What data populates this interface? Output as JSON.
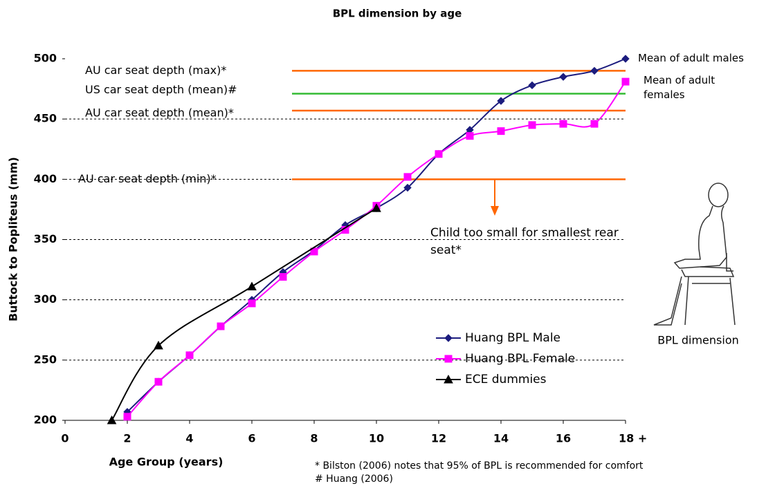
{
  "chart_data": {
    "type": "line",
    "title": "BPL dimension by age",
    "x_label": "Age Group (years)",
    "y_label": "Buttock to Popliteus (mm)",
    "xlim": [
      0,
      18
    ],
    "ylim": [
      200,
      500
    ],
    "xticks": [
      0,
      2,
      4,
      6,
      8,
      10,
      12,
      14,
      16,
      {
        "value": 18,
        "label": "18 +"
      }
    ],
    "yticks": [
      200,
      250,
      300,
      350,
      400,
      450,
      500
    ],
    "grid_lines": [
      250,
      300,
      350,
      400,
      450
    ],
    "legend": "lower right",
    "series": [
      {
        "name": "Huang BPL Male",
        "color": "#1c1c7e",
        "marker": "diamond",
        "x": [
          2,
          3,
          4,
          5,
          6,
          7,
          8,
          9,
          10,
          11,
          12,
          13,
          14,
          15,
          16,
          17,
          18
        ],
        "values": [
          207,
          232,
          254,
          278,
          300,
          323,
          341,
          362,
          376,
          393,
          421,
          441,
          465,
          478,
          485,
          490,
          500
        ]
      },
      {
        "name": "Huang BPL Female",
        "color": "#ff00ff",
        "marker": "square",
        "x": [
          2,
          3,
          4,
          5,
          6,
          7,
          8,
          9,
          10,
          11,
          12,
          13,
          14,
          15,
          16,
          17,
          18
        ],
        "values": [
          203,
          232,
          254,
          278,
          297,
          319,
          340,
          358,
          378,
          402,
          421,
          436,
          440,
          445,
          446,
          446,
          481
        ]
      },
      {
        "name": "ECE dummies",
        "color": "#000000",
        "marker": "triangle",
        "x": [
          1.5,
          3,
          6,
          10
        ],
        "values": [
          200,
          262,
          311,
          376
        ]
      }
    ],
    "reference_lines": [
      {
        "label": "AU car seat depth (max)*",
        "value": 490,
        "color": "#ff6600"
      },
      {
        "label": "US car seat depth (mean)#",
        "value": 471,
        "color": "#33bb33"
      },
      {
        "label": "AU car seat depth (mean)*",
        "value": 457,
        "color": "#ff6600"
      },
      {
        "label": "AU car seat depth (min)*",
        "value": 400,
        "color": "#ff6600"
      }
    ],
    "annotations": [
      "Mean of adult males",
      "Mean of adult females",
      "Child too small for smallest rear seat*"
    ],
    "footnotes": [
      "* Bilston (2006) notes that 95% of BPL is recommended for comfort",
      "# Huang (2006)"
    ],
    "figure_caption": "BPL dimension"
  }
}
